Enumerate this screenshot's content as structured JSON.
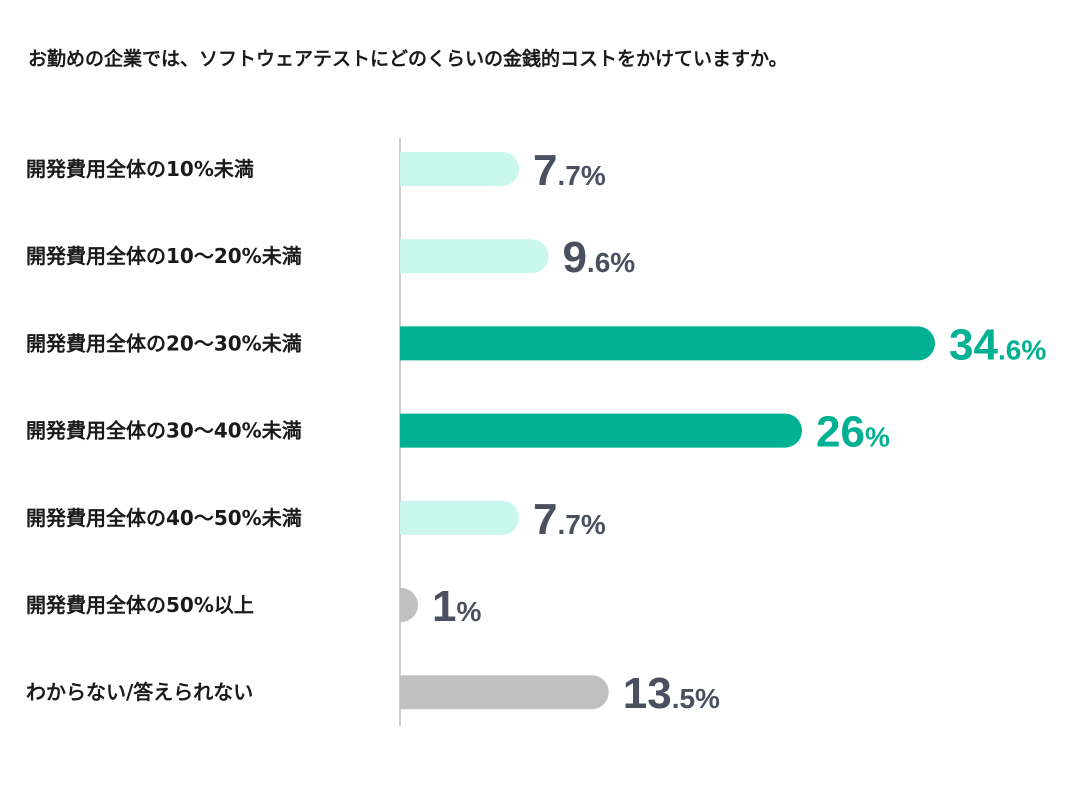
{
  "colors": {
    "highlight": "#00b092",
    "light": "#c9f7ee",
    "gray": "#c0c0c0",
    "text_dark": "#4a5060"
  },
  "chart_data": {
    "type": "bar",
    "orientation": "horizontal",
    "title": "お勤めの企業では、ソフトウェアテストにどのくらいの金銭的コストをかけていますか。",
    "xlabel": "",
    "ylabel": "",
    "unit": "%",
    "xlim": [
      0,
      40
    ],
    "grid": false,
    "legend": "none",
    "categories": [
      "開発費用全体の10%未満",
      "開発費用全体の10〜20%未満",
      "開発費用全体の20〜30%未満",
      "開発費用全体の30〜40%未満",
      "開発費用全体の40〜50%未満",
      "開発費用全体の50%以上",
      "わからない/答えられない"
    ],
    "values": [
      7.7,
      9.6,
      34.6,
      26,
      7.7,
      1,
      13.5
    ],
    "value_labels": [
      {
        "int": "7",
        "dec": ".7",
        "pct": "%"
      },
      {
        "int": "9",
        "dec": ".6",
        "pct": "%"
      },
      {
        "int": "34",
        "dec": ".6",
        "pct": "%"
      },
      {
        "int": "26",
        "dec": "",
        "pct": "%"
      },
      {
        "int": "7",
        "dec": ".7",
        "pct": "%"
      },
      {
        "int": "1",
        "dec": "",
        "pct": "%"
      },
      {
        "int": "13",
        "dec": ".5",
        "pct": "%"
      }
    ],
    "bar_styles": [
      "light",
      "light",
      "highlight",
      "highlight",
      "light",
      "gray",
      "gray"
    ]
  }
}
